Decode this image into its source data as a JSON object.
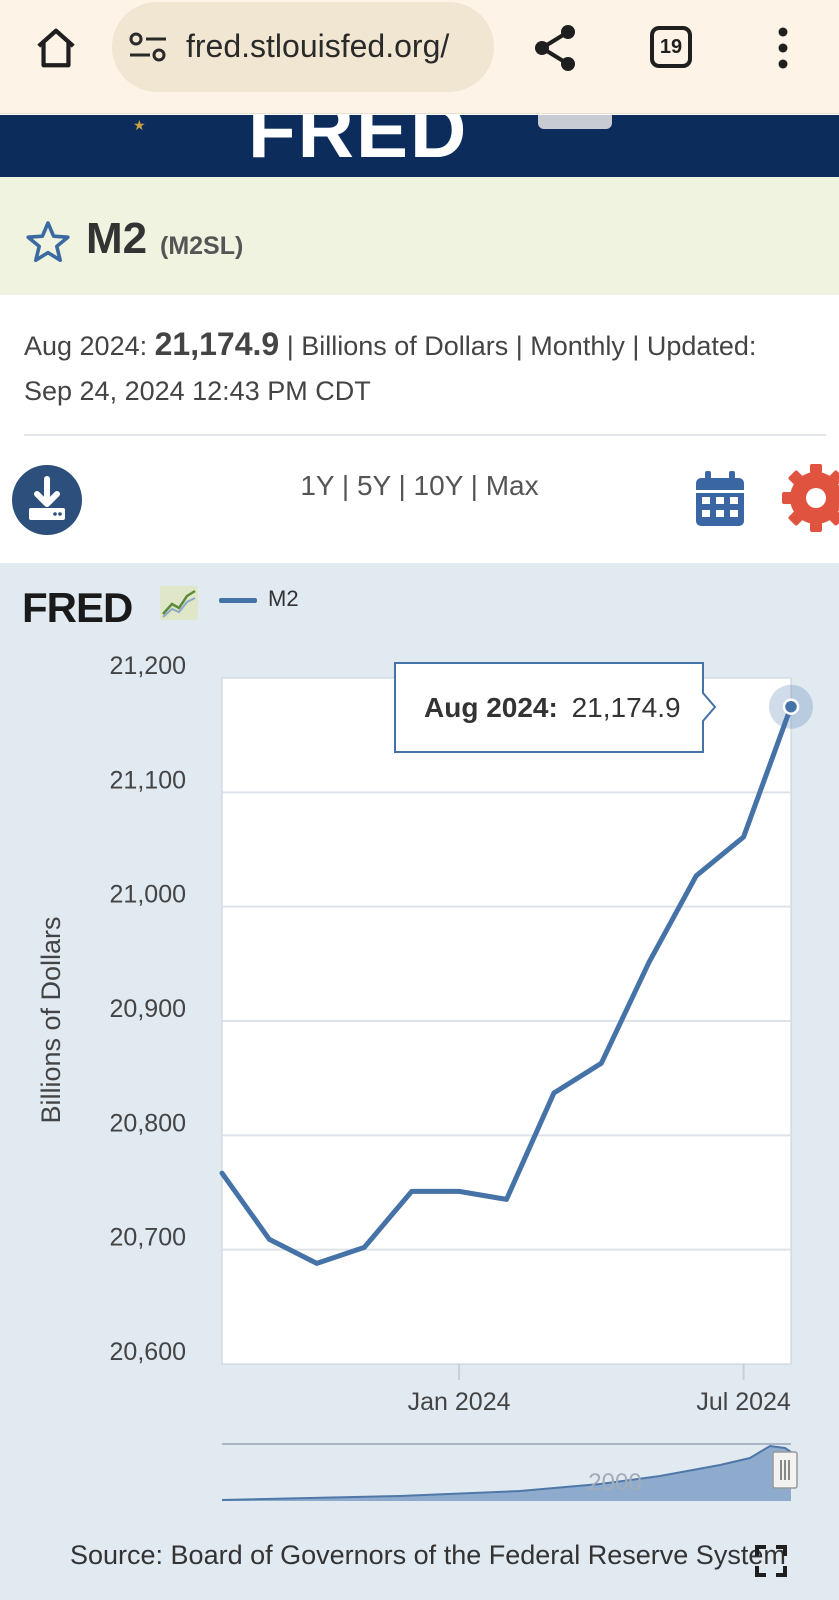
{
  "browser": {
    "url": "fred.stlouisfed.org/",
    "tab_count": "19"
  },
  "series": {
    "title": "M2",
    "id": "(M2SL)",
    "latest_date": "Aug 2024:",
    "latest_value": "21,174.9",
    "meta_rest": " | Billions of Dollars | Monthly | Updated:",
    "updated": "Sep 24, 2024 12:43 PM CDT"
  },
  "toolbar": {
    "range_1y": "1Y",
    "range_5y": "5Y",
    "range_10y": "10Y",
    "range_max": "Max",
    "sep": " | "
  },
  "legend": {
    "logo": "FRED",
    "series_name": "M2"
  },
  "tooltip": {
    "date": "Aug 2024:",
    "value": "21,174.9"
  },
  "navigator": {
    "label": "2000"
  },
  "source": "Source: Board of Governors of the Federal Reserve System",
  "colors": {
    "series": "#4572a7",
    "header_navy": "#0c2d5c",
    "title_band": "#eff3e0",
    "chart_bg": "#e1e9f1",
    "settings": "#e0533f"
  },
  "icons": [
    "home-icon",
    "tune-icon",
    "share-icon",
    "more-vert-icon",
    "star-icon",
    "download-icon",
    "calendar-icon",
    "gear-icon",
    "fullscreen-icon"
  ],
  "chart_data": {
    "type": "line",
    "xlabel": "",
    "ylabel": "Billions of Dollars",
    "ylim": [
      20600,
      21200
    ],
    "yticks": [
      20600,
      20700,
      20800,
      20900,
      21000,
      21100,
      21200
    ],
    "ytick_labels": [
      "20,600",
      "20,700",
      "20,800",
      "20,900",
      "21,000",
      "21,100",
      "21,200"
    ],
    "xtick_labels": [
      {
        "label": "Jan 2024",
        "x": "2024-01"
      },
      {
        "label": "Jul 2024",
        "x": "2024-07"
      }
    ],
    "x": [
      "2023-08",
      "2023-09",
      "2023-10",
      "2023-11",
      "2023-12",
      "2024-01",
      "2024-02",
      "2024-03",
      "2024-04",
      "2024-05",
      "2024-06",
      "2024-07",
      "2024-08"
    ],
    "series": [
      {
        "name": "M2",
        "values": [
          20767,
          20709,
          20688,
          20702,
          20751,
          20751,
          20744,
          20837,
          20863,
          20951,
          21027,
          21061,
          21174.9
        ]
      }
    ],
    "grid": true,
    "legend": "top-left"
  }
}
